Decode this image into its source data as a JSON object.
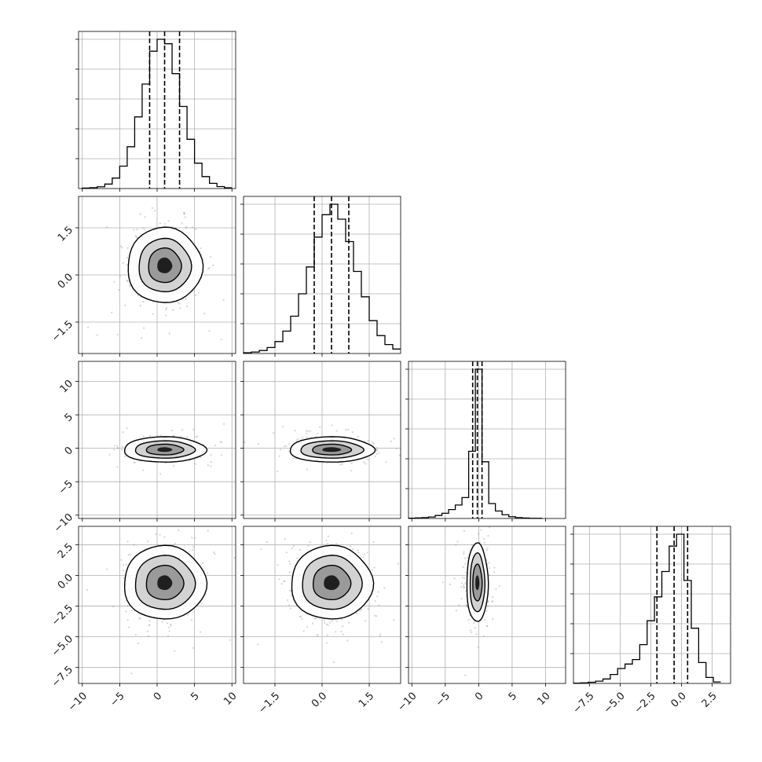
{
  "chart_data": {
    "type": "corner",
    "grid": true,
    "scatter_color": "#888888",
    "line_color": "#000000",
    "fill_levels": [
      "#ffffff",
      "#c8c8c8",
      "#8c8c8c",
      "#000000"
    ],
    "parameters": [
      {
        "id": "p0",
        "range": [
          -10.5,
          10.5
        ],
        "ticks": [
          -10,
          -5,
          0,
          5,
          10
        ],
        "tick_labels": [
          "−10",
          "−5",
          "0",
          "5",
          "10"
        ],
        "mean": 1.0,
        "sigma": 2.0,
        "quantiles": [
          -1.0,
          1.0,
          3.0
        ]
      },
      {
        "id": "p1",
        "range": [
          -2.5,
          2.5
        ],
        "ticks": [
          -1.5,
          0.0,
          1.5
        ],
        "tick_labels": [
          "−1.5",
          "0.0",
          "1.5"
        ],
        "mean": 0.3,
        "sigma": 0.55,
        "quantiles": [
          -0.25,
          0.3,
          0.85
        ]
      },
      {
        "id": "p2",
        "range": [
          -10.5,
          13.0
        ],
        "ticks": [
          -10,
          -5,
          0,
          5,
          10
        ],
        "tick_labels": [
          "−10",
          "−5",
          "0",
          "5",
          "10"
        ],
        "mean": -0.2,
        "sigma": 0.75,
        "quantiles": [
          -0.9,
          -0.2,
          0.5
        ]
      },
      {
        "id": "p3",
        "range": [
          -8.8,
          4.0
        ],
        "ticks": [
          -7.5,
          -5.0,
          -2.5,
          0.0,
          2.5
        ],
        "tick_labels": [
          "−7.5",
          "−5.0",
          "−2.5",
          "0.0",
          "2.5"
        ],
        "mean": -0.6,
        "sigma": 1.3,
        "quantiles": [
          -2.0,
          -0.6,
          0.5
        ]
      }
    ],
    "histograms": [
      {
        "param": "p0",
        "bin_edges": [
          -10,
          -9,
          -8,
          -7,
          -6,
          -5,
          -4,
          -3,
          -2,
          -1,
          0,
          1,
          2,
          3,
          4,
          5,
          6,
          7,
          8,
          9,
          10
        ],
        "counts": [
          0.003,
          0.006,
          0.012,
          0.03,
          0.07,
          0.15,
          0.28,
          0.48,
          0.7,
          0.92,
          1.0,
          0.97,
          0.77,
          0.55,
          0.33,
          0.17,
          0.08,
          0.035,
          0.013,
          0.005
        ]
      },
      {
        "param": "p1",
        "bin_edges": [
          -2.5,
          -2.25,
          -2.0,
          -1.75,
          -1.5,
          -1.25,
          -1.0,
          -0.75,
          -0.5,
          -0.25,
          0.0,
          0.25,
          0.5,
          0.75,
          1.0,
          1.25,
          1.5,
          1.75,
          2.0,
          2.25,
          2.5
        ],
        "counts": [
          0.005,
          0.01,
          0.02,
          0.04,
          0.08,
          0.15,
          0.25,
          0.4,
          0.58,
          0.78,
          0.93,
          1.0,
          0.9,
          0.75,
          0.55,
          0.38,
          0.22,
          0.12,
          0.06,
          0.03
        ]
      },
      {
        "param": "p2",
        "bin_edges": [
          -10.5,
          -9.5,
          -8.5,
          -7.5,
          -6.5,
          -5.5,
          -4.5,
          -3.5,
          -2.5,
          -1.5,
          -0.5,
          0.5,
          1.5,
          2.5,
          3.5,
          4.5,
          5.5,
          6.5,
          7.5,
          8.5,
          9.5
        ],
        "counts": [
          0.002,
          0.004,
          0.006,
          0.01,
          0.02,
          0.035,
          0.06,
          0.09,
          0.14,
          0.45,
          1.0,
          0.38,
          0.1,
          0.05,
          0.025,
          0.012,
          0.006,
          0.003,
          0.001,
          0.001
        ]
      },
      {
        "param": "p3",
        "bin_edges": [
          -8.8,
          -8.2,
          -7.6,
          -7.0,
          -6.4,
          -5.8,
          -5.2,
          -4.6,
          -4.0,
          -3.4,
          -2.8,
          -2.2,
          -1.6,
          -1.0,
          -0.4,
          0.2,
          0.8,
          1.4,
          2.0,
          2.6,
          3.2
        ],
        "counts": [
          0.002,
          0.004,
          0.008,
          0.015,
          0.03,
          0.06,
          0.1,
          0.13,
          0.16,
          0.26,
          0.42,
          0.58,
          0.75,
          0.92,
          1.0,
          0.69,
          0.37,
          0.14,
          0.04,
          0.01
        ]
      }
    ],
    "pairs": [
      {
        "x": "p0",
        "y": "p1",
        "contour_levels_x_radius": [
          5.0,
          3.5,
          2.2,
          1.0
        ],
        "contour_levels_y_radius": [
          1.2,
          0.85,
          0.55,
          0.25
        ]
      },
      {
        "x": "p0",
        "y": "p2",
        "contour_levels_x_radius": [
          5.5,
          4.0,
          2.5,
          1.0
        ],
        "contour_levels_y_radius": [
          1.9,
          1.3,
          0.8,
          0.35
        ]
      },
      {
        "x": "p1",
        "y": "p2",
        "contour_levels_x_radius": [
          1.35,
          1.0,
          0.62,
          0.3
        ],
        "contour_levels_y_radius": [
          1.9,
          1.3,
          0.8,
          0.35
        ]
      },
      {
        "x": "p0",
        "y": "p3",
        "contour_levels_x_radius": [
          5.5,
          4.0,
          2.5,
          1.0
        ],
        "contour_levels_y_radius": [
          3.0,
          2.2,
          1.4,
          0.6
        ]
      },
      {
        "x": "p1",
        "y": "p3",
        "contour_levels_x_radius": [
          1.3,
          0.95,
          0.6,
          0.25
        ],
        "contour_levels_y_radius": [
          3.0,
          2.2,
          1.4,
          0.6
        ]
      },
      {
        "x": "p2",
        "y": "p3",
        "contour_levels_x_radius": [
          1.6,
          1.1,
          0.7,
          0.3
        ],
        "contour_levels_y_radius": [
          3.2,
          2.4,
          1.5,
          0.6
        ]
      }
    ]
  }
}
